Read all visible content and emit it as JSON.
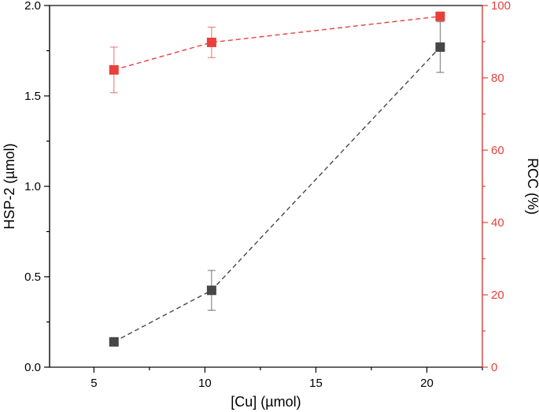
{
  "chart_data": {
    "type": "scatter",
    "title": "",
    "xlabel": "[Cu] (µmol)",
    "ylabel_left": "HSP-2 (µmol)",
    "ylabel_right": "RCC (%)",
    "xlim": [
      3,
      22.5
    ],
    "ylim_left": [
      0,
      2.0
    ],
    "ylim_right": [
      0,
      100
    ],
    "x_ticks": [
      5,
      10,
      15,
      20
    ],
    "y_ticks_left": [
      0.0,
      0.5,
      1.0,
      1.5,
      2.0
    ],
    "y_ticks_right": [
      0,
      20,
      40,
      60,
      80,
      100
    ],
    "x_tick_labels": [
      "5",
      "10",
      "15",
      "20"
    ],
    "y_tick_labels_left": [
      "0.0",
      "0.5",
      "1.0",
      "1.5",
      "2.0"
    ],
    "y_tick_labels_right": [
      "0",
      "20",
      "40",
      "60",
      "80",
      "100"
    ],
    "grid": false,
    "legend": "none",
    "series": [
      {
        "name": "HSP-2",
        "axis": "left",
        "color": "#474747",
        "x": [
          5.9,
          10.3,
          20.6
        ],
        "y": [
          0.14,
          0.425,
          1.77
        ],
        "err": [
          0.0,
          0.11,
          0.14
        ]
      },
      {
        "name": "RCC",
        "axis": "right",
        "color": "#e8403b",
        "x": [
          5.9,
          10.3,
          20.6
        ],
        "y": [
          82.2,
          89.8,
          97.0
        ],
        "err": [
          6.3,
          4.2,
          1.2
        ]
      }
    ]
  }
}
